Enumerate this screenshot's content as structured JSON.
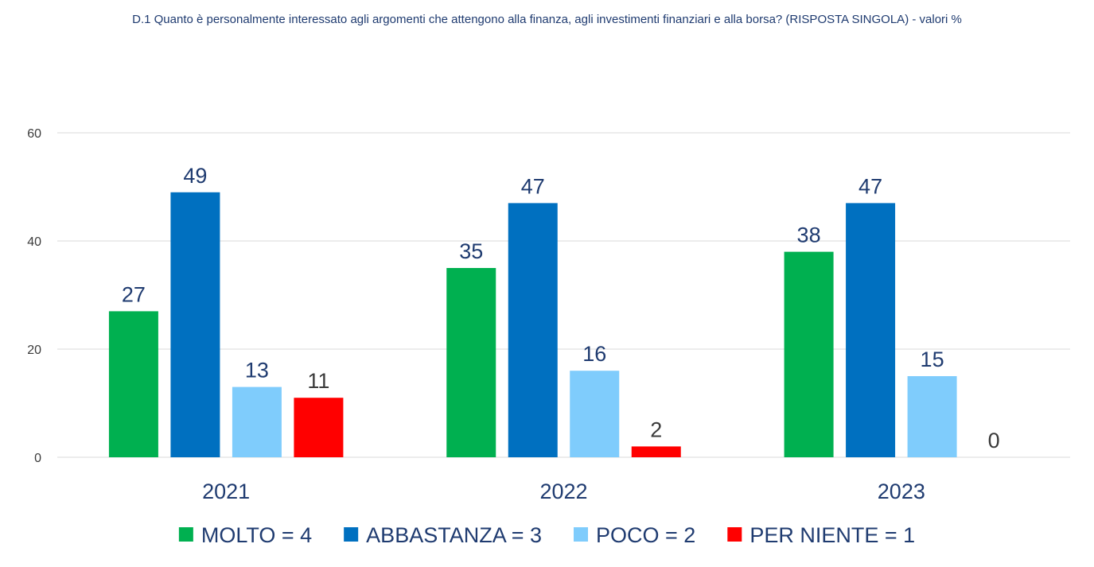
{
  "chart_data": {
    "type": "bar",
    "title": "D.1 Quanto è personalmente interessato agli argomenti che attengono alla finanza, agli investimenti finanziari e alla borsa? (RISPOSTA SINGOLA) - valori %",
    "categories": [
      "2021",
      "2022",
      "2023"
    ],
    "series": [
      {
        "name": "MOLTO = 4",
        "color": "#00b050",
        "label_color": "#1f3b70",
        "values": [
          27,
          35,
          38
        ]
      },
      {
        "name": "ABBASTANZA = 3",
        "color": "#0070c0",
        "label_color": "#1f3b70",
        "values": [
          49,
          47,
          47
        ]
      },
      {
        "name": "POCO = 2",
        "color": "#7fccfc",
        "label_color": "#1f3b70",
        "values": [
          13,
          16,
          15
        ]
      },
      {
        "name": "PER NIENTE = 1",
        "color": "#ff0000",
        "label_color": "#3a3a3a",
        "values": [
          11,
          2,
          0
        ]
      }
    ],
    "ylim": [
      0,
      60
    ],
    "yticks": [
      0,
      20,
      40,
      60
    ],
    "grid": true,
    "legend_position": "bottom",
    "xlabel": "",
    "ylabel": ""
  }
}
